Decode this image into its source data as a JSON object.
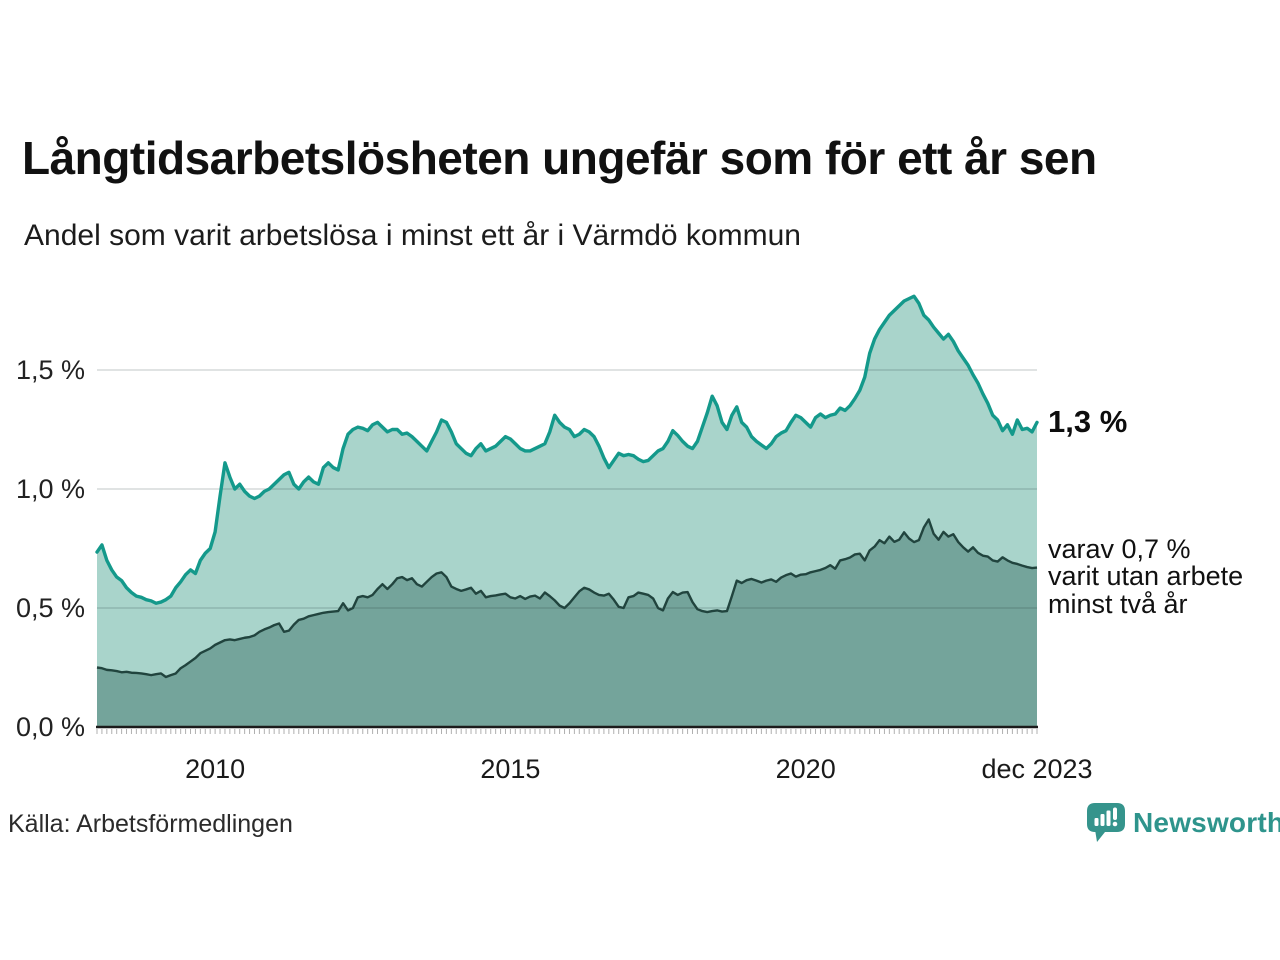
{
  "header": {
    "title": "Långtidsarbetslösheten ungefär som för ett år sen",
    "subtitle": "Andel som varit arbetslösa i minst ett år i Värmdö kommun"
  },
  "chart_data": {
    "type": "area",
    "title": "Långtidsarbetslösheten ungefär som för ett år sen",
    "subtitle": "Andel som varit arbetslösa i minst ett år i Värmdö kommun",
    "unit": "%",
    "x_start": "2008-01",
    "x_end": "2023-12",
    "interval": "monthly",
    "ylim": [
      0,
      1.9
    ],
    "grid": "horizontal",
    "y_ticks": [
      {
        "label": "0,0 %",
        "value": 0
      },
      {
        "label": "0,5 %",
        "value": 0.5
      },
      {
        "label": "1,0 %",
        "value": 1.0
      },
      {
        "label": "1,5 %",
        "value": 1.5
      }
    ],
    "x_ticks": [
      {
        "label": "2010",
        "month_index": 24
      },
      {
        "label": "2015",
        "month_index": 84
      },
      {
        "label": "2020",
        "month_index": 144
      },
      {
        "label": "dec 2023",
        "month_index": 191
      }
    ],
    "series": [
      {
        "name": "Andel som varit arbetslösa i minst ett år",
        "line_color": "#14998b",
        "fill_color": "#a9d4cb",
        "values": [
          0.735,
          0.765,
          0.7,
          0.66,
          0.63,
          0.615,
          0.585,
          0.565,
          0.55,
          0.545,
          0.535,
          0.53,
          0.52,
          0.525,
          0.535,
          0.55,
          0.585,
          0.61,
          0.64,
          0.66,
          0.645,
          0.7,
          0.73,
          0.75,
          0.82,
          0.97,
          1.11,
          1.05,
          1.0,
          1.02,
          0.99,
          0.97,
          0.96,
          0.97,
          0.99,
          1.0,
          1.02,
          1.04,
          1.06,
          1.07,
          1.02,
          1.0,
          1.03,
          1.05,
          1.03,
          1.02,
          1.09,
          1.11,
          1.09,
          1.08,
          1.17,
          1.23,
          1.25,
          1.26,
          1.255,
          1.245,
          1.27,
          1.28,
          1.26,
          1.24,
          1.25,
          1.25,
          1.23,
          1.235,
          1.22,
          1.2,
          1.18,
          1.16,
          1.2,
          1.24,
          1.29,
          1.28,
          1.24,
          1.19,
          1.17,
          1.15,
          1.14,
          1.17,
          1.19,
          1.16,
          1.17,
          1.18,
          1.2,
          1.22,
          1.21,
          1.19,
          1.17,
          1.16,
          1.16,
          1.17,
          1.18,
          1.19,
          1.24,
          1.31,
          1.28,
          1.26,
          1.25,
          1.22,
          1.23,
          1.25,
          1.24,
          1.22,
          1.18,
          1.13,
          1.09,
          1.12,
          1.15,
          1.14,
          1.145,
          1.14,
          1.125,
          1.115,
          1.12,
          1.14,
          1.16,
          1.17,
          1.2,
          1.245,
          1.225,
          1.2,
          1.18,
          1.17,
          1.2,
          1.26,
          1.32,
          1.39,
          1.35,
          1.28,
          1.25,
          1.31,
          1.345,
          1.28,
          1.26,
          1.22,
          1.2,
          1.185,
          1.17,
          1.19,
          1.22,
          1.235,
          1.245,
          1.28,
          1.31,
          1.3,
          1.28,
          1.26,
          1.3,
          1.315,
          1.3,
          1.31,
          1.315,
          1.34,
          1.33,
          1.35,
          1.38,
          1.415,
          1.47,
          1.57,
          1.63,
          1.67,
          1.7,
          1.73,
          1.75,
          1.77,
          1.79,
          1.8,
          1.81,
          1.78,
          1.73,
          1.71,
          1.68,
          1.655,
          1.63,
          1.65,
          1.62,
          1.58,
          1.55,
          1.52,
          1.48,
          1.445,
          1.4,
          1.36,
          1.31,
          1.29,
          1.245,
          1.27,
          1.23,
          1.29,
          1.25,
          1.255,
          1.24,
          1.28
        ]
      },
      {
        "name": "varav utan arbete minst två år",
        "line_color": "#21443e",
        "fill_color": "#74a49b",
        "values": [
          0.25,
          0.247,
          0.24,
          0.238,
          0.235,
          0.23,
          0.232,
          0.228,
          0.227,
          0.225,
          0.222,
          0.218,
          0.222,
          0.225,
          0.21,
          0.218,
          0.225,
          0.247,
          0.26,
          0.275,
          0.29,
          0.31,
          0.32,
          0.33,
          0.345,
          0.355,
          0.365,
          0.368,
          0.365,
          0.37,
          0.375,
          0.378,
          0.385,
          0.4,
          0.41,
          0.418,
          0.428,
          0.435,
          0.4,
          0.405,
          0.43,
          0.45,
          0.455,
          0.465,
          0.47,
          0.475,
          0.48,
          0.483,
          0.485,
          0.487,
          0.52,
          0.49,
          0.5,
          0.545,
          0.55,
          0.545,
          0.555,
          0.58,
          0.6,
          0.58,
          0.6,
          0.625,
          0.63,
          0.617,
          0.625,
          0.6,
          0.59,
          0.61,
          0.63,
          0.645,
          0.65,
          0.63,
          0.59,
          0.58,
          0.572,
          0.578,
          0.585,
          0.56,
          0.572,
          0.545,
          0.55,
          0.553,
          0.557,
          0.56,
          0.545,
          0.54,
          0.55,
          0.538,
          0.548,
          0.552,
          0.54,
          0.565,
          0.55,
          0.532,
          0.51,
          0.5,
          0.52,
          0.545,
          0.57,
          0.585,
          0.578,
          0.565,
          0.555,
          0.552,
          0.56,
          0.535,
          0.505,
          0.5,
          0.545,
          0.55,
          0.565,
          0.56,
          0.555,
          0.54,
          0.5,
          0.49,
          0.54,
          0.567,
          0.555,
          0.565,
          0.567,
          0.525,
          0.495,
          0.487,
          0.483,
          0.487,
          0.49,
          0.485,
          0.487,
          0.55,
          0.615,
          0.605,
          0.617,
          0.622,
          0.615,
          0.607,
          0.615,
          0.62,
          0.61,
          0.628,
          0.638,
          0.645,
          0.632,
          0.64,
          0.642,
          0.65,
          0.655,
          0.66,
          0.668,
          0.68,
          0.665,
          0.7,
          0.705,
          0.712,
          0.725,
          0.728,
          0.7,
          0.742,
          0.758,
          0.785,
          0.772,
          0.8,
          0.778,
          0.787,
          0.818,
          0.792,
          0.777,
          0.785,
          0.838,
          0.872,
          0.812,
          0.787,
          0.82,
          0.8,
          0.81,
          0.777,
          0.755,
          0.737,
          0.755,
          0.732,
          0.72,
          0.716,
          0.7,
          0.695,
          0.713,
          0.7,
          0.69,
          0.685,
          0.678,
          0.672,
          0.668,
          0.67
        ]
      }
    ],
    "annotations": [
      {
        "text": "1,3 %",
        "bold": true,
        "series": 0
      },
      {
        "lines": [
          "varav 0,7 %",
          "varit utan arbete",
          "minst två år"
        ],
        "series": 1
      }
    ]
  },
  "footer": {
    "source": "Källa: Arbetsförmedlingen",
    "brand": "Newsworthy",
    "brand_color": "#2e948c",
    "logo_icon": "bar-chart-speech-bubble"
  },
  "colors": {
    "grid": "rgba(30,50,48,0.18)",
    "baseline": "#1b1b1b",
    "tick": "#b0b0b0"
  }
}
